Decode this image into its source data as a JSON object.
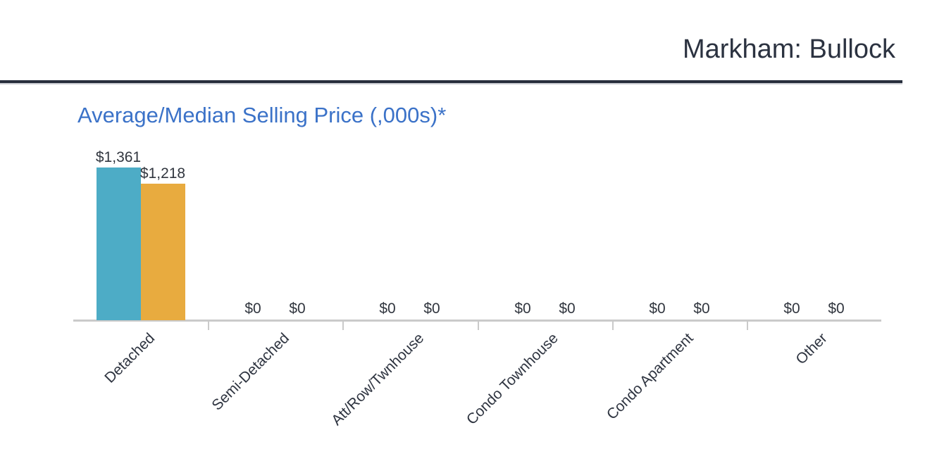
{
  "header": {
    "title": "Markham: Bullock"
  },
  "chart": {
    "title": "Average/Median Selling Price (,000s)*"
  },
  "chart_data": {
    "type": "bar",
    "title": "Average/Median Selling Price (,000s)*",
    "categories": [
      "Detached",
      "Semi-Detached",
      "Att/Row/Twnhouse",
      "Condo Townhouse",
      "Condo Apartment",
      "Other"
    ],
    "series": [
      {
        "name": "Average",
        "color": "#4dacc6",
        "values": [
          1361,
          0,
          0,
          0,
          0,
          0
        ],
        "labels": [
          "$1,361",
          "$0",
          "$0",
          "$0",
          "$0",
          "$0"
        ]
      },
      {
        "name": "Median",
        "color": "#e8ab3f",
        "values": [
          1218,
          0,
          0,
          0,
          0,
          0
        ],
        "labels": [
          "$1,218",
          "$0",
          "$0",
          "$0",
          "$0",
          "$0"
        ]
      }
    ],
    "unit": ",000s",
    "ylim": [
      0,
      1450
    ],
    "xlabel": "",
    "ylabel": "",
    "legend": "none",
    "grid": false,
    "label_rotation_deg": -45,
    "colors": {
      "axis_line": "#cacaca",
      "value_text": "#31363f",
      "title_blue": "#3b72c8",
      "header_dark": "#2b3240"
    }
  }
}
